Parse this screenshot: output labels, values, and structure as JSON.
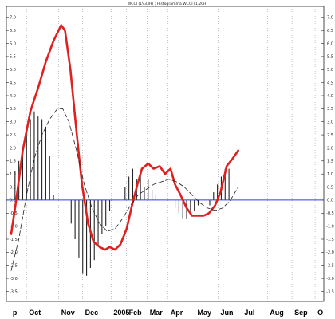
{
  "chart_data": {
    "type": "line",
    "title": "WCCI (1933H) ; Histogramma WCCI (1.20H)",
    "ylim": [
      -3.7,
      7.3
    ],
    "y_ticks": [
      7.0,
      6.5,
      6.0,
      5.5,
      5.0,
      4.5,
      4.0,
      3.5,
      3.0,
      2.5,
      2.0,
      1.5,
      1.0,
      0.5,
      0.0,
      -0.5,
      -1.0,
      -1.5,
      -2.0,
      -2.5,
      -3.0,
      -3.5
    ],
    "y_tick_labels": [
      "7.0",
      "6.5",
      "6.0",
      "5.5",
      "5.0",
      "4.5",
      "4.0",
      "3.5",
      "3.0",
      "2.5",
      "2.0",
      "1.5",
      "1.0",
      "0.5",
      "0.0",
      "-0.5",
      "-1.0",
      "-1.5",
      "-2.0",
      "-2.5",
      "-3.0",
      "-3.5"
    ],
    "x_range": [
      0,
      40
    ],
    "x_ticks": [
      {
        "label": "p",
        "x": 0.2
      },
      {
        "label": "Oct",
        "x": 2.3
      },
      {
        "label": "Nov",
        "x": 6.5
      },
      {
        "label": "Dec",
        "x": 9.6
      },
      {
        "label": "2005",
        "x": 13.3
      },
      {
        "label": "Feb",
        "x": 15.3
      },
      {
        "label": "Mar",
        "x": 18.0
      },
      {
        "label": "Apr",
        "x": 20.7
      },
      {
        "label": "May",
        "x": 24.2
      },
      {
        "label": "Jun",
        "x": 27.2
      },
      {
        "label": "Jul",
        "x": 30.3
      },
      {
        "label": "Aug",
        "x": 33.6
      },
      {
        "label": "Sep",
        "x": 36.8
      },
      {
        "label": "O",
        "x": 39.8
      }
    ],
    "zero_line": 0,
    "series": [
      {
        "style": "thick-red-line",
        "color": "#e02020",
        "points": [
          [
            0.0,
            -1.3
          ],
          [
            0.7,
            0.1
          ],
          [
            1.5,
            1.9
          ],
          [
            2.5,
            3.4
          ],
          [
            3.5,
            4.3
          ],
          [
            4.5,
            5.3
          ],
          [
            5.5,
            6.1
          ],
          [
            6.5,
            6.7
          ],
          [
            7.0,
            6.5
          ],
          [
            7.7,
            5.0
          ],
          [
            8.5,
            2.6
          ],
          [
            9.2,
            0.6
          ],
          [
            10.0,
            -0.9
          ],
          [
            10.7,
            -1.6
          ],
          [
            11.5,
            -1.8
          ],
          [
            12.2,
            -1.9
          ],
          [
            12.8,
            -1.8
          ],
          [
            13.5,
            -1.9
          ],
          [
            14.2,
            -1.7
          ],
          [
            15.0,
            -1.1
          ],
          [
            15.7,
            -0.2
          ],
          [
            16.4,
            0.6
          ],
          [
            17.0,
            1.2
          ],
          [
            17.8,
            1.4
          ],
          [
            18.5,
            1.2
          ],
          [
            19.3,
            1.3
          ],
          [
            20.0,
            1.0
          ],
          [
            20.7,
            1.2
          ],
          [
            21.3,
            0.6
          ],
          [
            22.0,
            0.2
          ],
          [
            22.8,
            -0.3
          ],
          [
            23.5,
            -0.6
          ],
          [
            24.3,
            -0.6
          ],
          [
            25.0,
            -0.6
          ],
          [
            25.7,
            -0.5
          ],
          [
            26.5,
            -0.2
          ],
          [
            27.2,
            0.3
          ],
          [
            28.0,
            1.3
          ],
          [
            28.8,
            1.6
          ],
          [
            29.5,
            1.9
          ]
        ]
      },
      {
        "style": "thin-dashed-line",
        "color": "#202020",
        "points": [
          [
            0.0,
            -2.7
          ],
          [
            1.0,
            -1.5
          ],
          [
            2.0,
            0.2
          ],
          [
            3.0,
            1.6
          ],
          [
            4.0,
            2.5
          ],
          [
            5.0,
            3.1
          ],
          [
            6.0,
            3.5
          ],
          [
            6.7,
            3.5
          ],
          [
            7.5,
            3.0
          ],
          [
            8.5,
            1.9
          ],
          [
            9.5,
            0.6
          ],
          [
            10.5,
            -0.3
          ],
          [
            11.5,
            -0.9
          ],
          [
            12.5,
            -1.2
          ],
          [
            13.5,
            -1.1
          ],
          [
            14.5,
            -0.7
          ],
          [
            15.5,
            -0.2
          ],
          [
            16.5,
            0.2
          ],
          [
            17.5,
            0.4
          ],
          [
            18.5,
            0.6
          ],
          [
            19.5,
            0.7
          ],
          [
            20.5,
            0.8
          ],
          [
            21.5,
            0.7
          ],
          [
            22.5,
            0.5
          ],
          [
            23.5,
            0.2
          ],
          [
            24.5,
            -0.1
          ],
          [
            25.5,
            -0.3
          ],
          [
            26.5,
            -0.4
          ],
          [
            27.5,
            -0.3
          ],
          [
            28.5,
            0.0
          ],
          [
            29.5,
            0.5
          ]
        ]
      }
    ],
    "histogram": {
      "color": "#222222",
      "bars": [
        [
          0.5,
          1.1
        ],
        [
          1.0,
          1.5
        ],
        [
          1.5,
          1.9
        ],
        [
          2.0,
          2.8
        ],
        [
          2.5,
          3.1
        ],
        [
          3.0,
          3.4
        ],
        [
          3.5,
          3.2
        ],
        [
          4.0,
          3.1
        ],
        [
          4.5,
          2.8
        ],
        [
          5.0,
          1.7
        ],
        [
          5.5,
          0.2
        ],
        [
          7.8,
          -0.9
        ],
        [
          8.3,
          -1.5
        ],
        [
          8.8,
          -2.2
        ],
        [
          9.3,
          -2.8
        ],
        [
          9.8,
          -2.9
        ],
        [
          10.3,
          -2.6
        ],
        [
          10.8,
          -2.3
        ],
        [
          11.3,
          -1.7
        ],
        [
          11.8,
          -1.3
        ],
        [
          12.3,
          -1.0
        ],
        [
          12.8,
          -0.4
        ],
        [
          14.8,
          0.5
        ],
        [
          15.3,
          0.9
        ],
        [
          15.8,
          1.2
        ],
        [
          16.3,
          0.8
        ],
        [
          16.8,
          1.1
        ],
        [
          17.3,
          0.5
        ],
        [
          17.8,
          0.8
        ],
        [
          18.3,
          0.4
        ],
        [
          18.8,
          0.2
        ],
        [
          21.3,
          -0.3
        ],
        [
          21.8,
          -0.5
        ],
        [
          22.3,
          -0.7
        ],
        [
          22.8,
          -0.7
        ],
        [
          23.3,
          -0.4
        ],
        [
          23.8,
          -0.4
        ],
        [
          24.3,
          -0.2
        ],
        [
          25.8,
          -0.2
        ],
        [
          26.3,
          0.3
        ],
        [
          26.8,
          0.6
        ],
        [
          27.3,
          0.9
        ],
        [
          27.8,
          1.2
        ],
        [
          28.3,
          1.2
        ]
      ]
    },
    "grid": false,
    "legend": "none"
  }
}
